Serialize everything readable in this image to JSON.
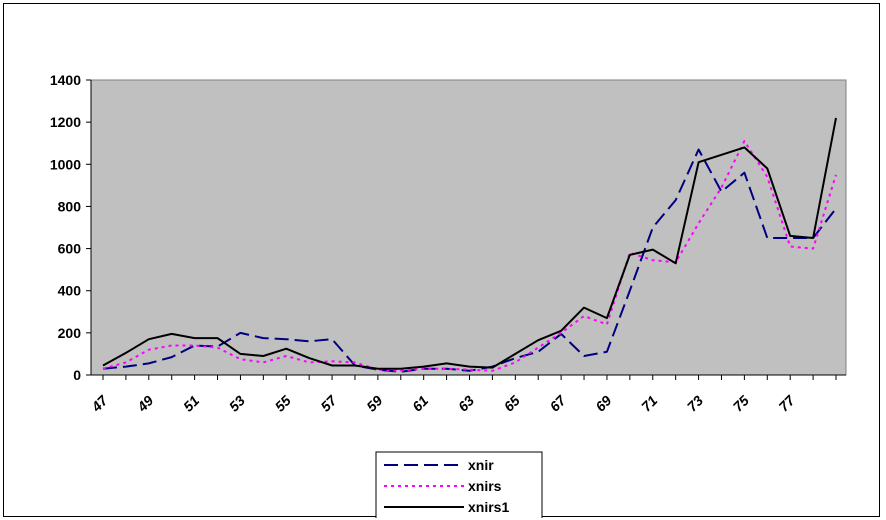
{
  "chart_data": {
    "type": "line",
    "title": "",
    "xlabel": "",
    "ylabel": "",
    "ylim": [
      0,
      1400
    ],
    "yticks": [
      0,
      200,
      400,
      600,
      800,
      1000,
      1200,
      1400
    ],
    "x": [
      47,
      48,
      49,
      50,
      51,
      52,
      53,
      54,
      55,
      56,
      57,
      58,
      59,
      60,
      61,
      62,
      63,
      64,
      65,
      66,
      67,
      68,
      69,
      70,
      71,
      72,
      73,
      74,
      75,
      76,
      77,
      78,
      79
    ],
    "xtick_labels": [
      "47",
      "49",
      "51",
      "53",
      "55",
      "57",
      "59",
      "61",
      "63",
      "65",
      "67",
      "69",
      "71",
      "73",
      "75",
      "77"
    ],
    "grid": false,
    "plot_background": "#c0c0c0",
    "legend_position": "bottom",
    "series": [
      {
        "name": "xnir",
        "color": "#000080",
        "dash": "long-dash",
        "values": [
          30,
          40,
          55,
          85,
          140,
          135,
          200,
          175,
          170,
          160,
          170,
          45,
          25,
          15,
          30,
          30,
          20,
          40,
          80,
          110,
          195,
          90,
          110,
          400,
          700,
          830,
          1070,
          870,
          960,
          650,
          650,
          650,
          790
        ]
      },
      {
        "name": "xnirs",
        "color": "#ff00ff",
        "dash": "dotted",
        "values": [
          30,
          60,
          120,
          140,
          140,
          130,
          75,
          60,
          90,
          60,
          65,
          60,
          25,
          20,
          30,
          30,
          25,
          20,
          60,
          130,
          200,
          280,
          240,
          580,
          545,
          535,
          720,
          890,
          1110,
          940,
          610,
          600,
          950
        ]
      },
      {
        "name": "xnirs1",
        "color": "#000000",
        "dash": "solid",
        "values": [
          45,
          105,
          170,
          195,
          175,
          175,
          100,
          90,
          125,
          80,
          45,
          45,
          30,
          30,
          40,
          55,
          40,
          35,
          100,
          165,
          210,
          320,
          270,
          570,
          595,
          530,
          1010,
          1045,
          1080,
          980,
          660,
          650,
          1220
        ]
      }
    ]
  }
}
